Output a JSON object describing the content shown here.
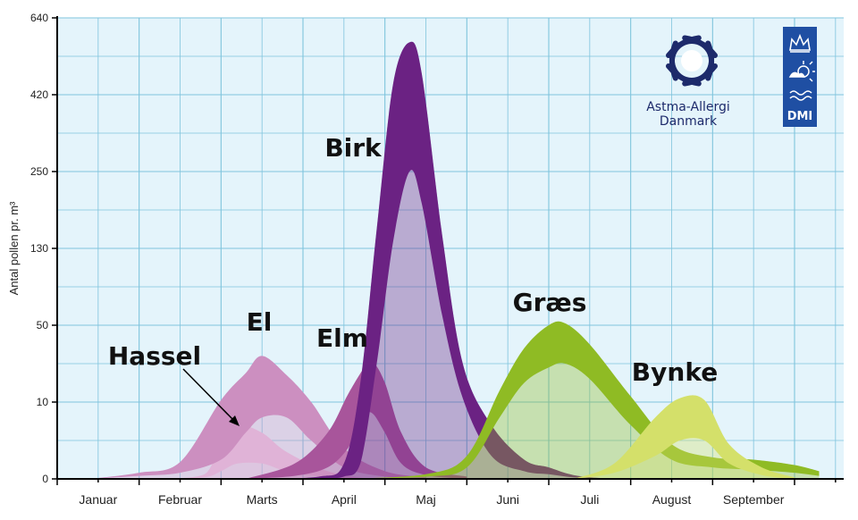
{
  "chart_data": {
    "type": "area",
    "title": "",
    "xlabel": "",
    "ylabel": "Antal pollen pr. m³",
    "y_ticks": [
      "0",
      "10",
      "50",
      "130",
      "250",
      "420",
      "640"
    ],
    "x_ticks": [
      "Januar",
      "Februar",
      "Marts",
      "April",
      "Maj",
      "Juni",
      "Juli",
      "August",
      "September"
    ],
    "x_unit": "month (0 = start of Januar)",
    "y_scale": "non-linear (labelled ticks 0, 10, 50, 130, 250, 420, 640)",
    "grid": true,
    "series": [
      {
        "name": "Hassel",
        "color": "#ecc6e3",
        "band": [
          {
            "x": 1.3,
            "lo": 0,
            "hi": 0
          },
          {
            "x": 1.8,
            "lo": 0.2,
            "hi": 0.6
          },
          {
            "x": 2.0,
            "lo": 1.0,
            "hi": 5.0
          },
          {
            "x": 2.2,
            "lo": 2.0,
            "hi": 7.0
          },
          {
            "x": 2.5,
            "lo": 2.0,
            "hi": 6.0
          },
          {
            "x": 2.8,
            "lo": 1.0,
            "hi": 3.5
          },
          {
            "x": 3.3,
            "lo": 0.2,
            "hi": 1.0
          },
          {
            "x": 3.8,
            "lo": 0,
            "hi": 0
          }
        ]
      },
      {
        "name": "El",
        "color": "#cc8fc0",
        "band": [
          {
            "x": 0.4,
            "lo": 0,
            "hi": 0
          },
          {
            "x": 1.0,
            "lo": 0.4,
            "hi": 0.8
          },
          {
            "x": 1.5,
            "lo": 0.8,
            "hi": 2.2
          },
          {
            "x": 2.0,
            "lo": 2.5,
            "hi": 11.0
          },
          {
            "x": 2.3,
            "lo": 6.0,
            "hi": 25.0
          },
          {
            "x": 2.5,
            "lo": 8.0,
            "hi": 34.0
          },
          {
            "x": 2.8,
            "lo": 8.0,
            "hi": 24.0
          },
          {
            "x": 3.1,
            "lo": 5.0,
            "hi": 10.0
          },
          {
            "x": 3.5,
            "lo": 1.5,
            "hi": 4.0
          },
          {
            "x": 4.0,
            "lo": 0.3,
            "hi": 1.0
          },
          {
            "x": 4.5,
            "lo": 0,
            "hi": 0.2
          }
        ]
      },
      {
        "name": "Elm",
        "color": "#a8559b",
        "band": [
          {
            "x": 2.3,
            "lo": 0,
            "hi": 0
          },
          {
            "x": 2.9,
            "lo": 0.4,
            "hi": 2.0
          },
          {
            "x": 3.3,
            "lo": 1.5,
            "hi": 6.0
          },
          {
            "x": 3.55,
            "lo": 4.0,
            "hi": 14.0
          },
          {
            "x": 3.75,
            "lo": 8.0,
            "hi": 28.0
          },
          {
            "x": 3.85,
            "lo": 8.5,
            "hi": 31.0
          },
          {
            "x": 4.0,
            "lo": 6.0,
            "hi": 20.0
          },
          {
            "x": 4.2,
            "lo": 2.0,
            "hi": 6.0
          },
          {
            "x": 4.5,
            "lo": 0.5,
            "hi": 1.5
          },
          {
            "x": 5.0,
            "lo": 0,
            "hi": 0.3
          }
        ]
      },
      {
        "name": "Birk",
        "color": "#6b2283",
        "band": [
          {
            "x": 2.5,
            "lo": 0,
            "hi": 0
          },
          {
            "x": 3.2,
            "lo": 0.1,
            "hi": 0.3
          },
          {
            "x": 3.5,
            "lo": 0.3,
            "hi": 2.0
          },
          {
            "x": 3.7,
            "lo": 2.0,
            "hi": 20.0
          },
          {
            "x": 3.9,
            "lo": 30.0,
            "hi": 160.0
          },
          {
            "x": 4.1,
            "lo": 140.0,
            "hi": 450.0
          },
          {
            "x": 4.3,
            "lo": 250.0,
            "hi": 570.0
          },
          {
            "x": 4.45,
            "lo": 200.0,
            "hi": 480.0
          },
          {
            "x": 4.7,
            "lo": 60.0,
            "hi": 150.0
          },
          {
            "x": 4.95,
            "lo": 12.0,
            "hi": 30.0
          },
          {
            "x": 5.3,
            "lo": 3.0,
            "hi": 7.0
          },
          {
            "x": 5.7,
            "lo": 1.0,
            "hi": 2.5
          },
          {
            "x": 6.0,
            "lo": 0.6,
            "hi": 1.5
          },
          {
            "x": 6.3,
            "lo": 0.2,
            "hi": 0.5
          },
          {
            "x": 6.7,
            "lo": 0,
            "hi": 0.05
          }
        ]
      },
      {
        "name": "Græs",
        "color": "#8fbb24",
        "band": [
          {
            "x": 3.5,
            "lo": 0,
            "hi": 0
          },
          {
            "x": 4.5,
            "lo": 0.3,
            "hi": 0.6
          },
          {
            "x": 5.0,
            "lo": 1.5,
            "hi": 3.0
          },
          {
            "x": 5.4,
            "lo": 8.0,
            "hi": 16.0
          },
          {
            "x": 5.7,
            "lo": 20.0,
            "hi": 38.0
          },
          {
            "x": 6.0,
            "lo": 28.0,
            "hi": 50.0
          },
          {
            "x": 6.2,
            "lo": 30.0,
            "hi": 52.0
          },
          {
            "x": 6.5,
            "lo": 22.0,
            "hi": 40.0
          },
          {
            "x": 7.0,
            "lo": 7.0,
            "hi": 13.0
          },
          {
            "x": 7.5,
            "lo": 2.5,
            "hi": 4.5
          },
          {
            "x": 8.0,
            "lo": 1.5,
            "hi": 2.8
          },
          {
            "x": 8.5,
            "lo": 1.2,
            "hi": 2.5
          },
          {
            "x": 9.0,
            "lo": 0.8,
            "hi": 1.8
          },
          {
            "x": 9.3,
            "lo": 0.4,
            "hi": 1.0
          }
        ]
      },
      {
        "name": "Bynke",
        "color": "#d4e06a",
        "band": [
          {
            "x": 6.3,
            "lo": 0,
            "hi": 0
          },
          {
            "x": 6.8,
            "lo": 0.8,
            "hi": 2.0
          },
          {
            "x": 7.3,
            "lo": 3.0,
            "hi": 8.0
          },
          {
            "x": 7.6,
            "lo": 5.0,
            "hi": 12.0
          },
          {
            "x": 7.9,
            "lo": 5.0,
            "hi": 11.0
          },
          {
            "x": 8.2,
            "lo": 2.0,
            "hi": 4.5
          },
          {
            "x": 8.6,
            "lo": 0.5,
            "hi": 1.5
          },
          {
            "x": 9.0,
            "lo": 0,
            "hi": 0.2
          }
        ]
      }
    ],
    "series_labels": [
      "Birk",
      "El",
      "Elm",
      "Hassel",
      "Græs",
      "Bynke"
    ],
    "annotation": {
      "text": "Hassel",
      "target": "Hassel"
    }
  },
  "logos": {
    "astma_allergi": {
      "line1": "Astma-Allergi",
      "line2": "Danmark",
      "color": "#1d2a6b"
    },
    "dmi": {
      "text": "DMI",
      "color": "#1f4fa3"
    }
  },
  "colors": {
    "plot_bg": "#e4f4fb",
    "grid": "#7fc4dd"
  }
}
